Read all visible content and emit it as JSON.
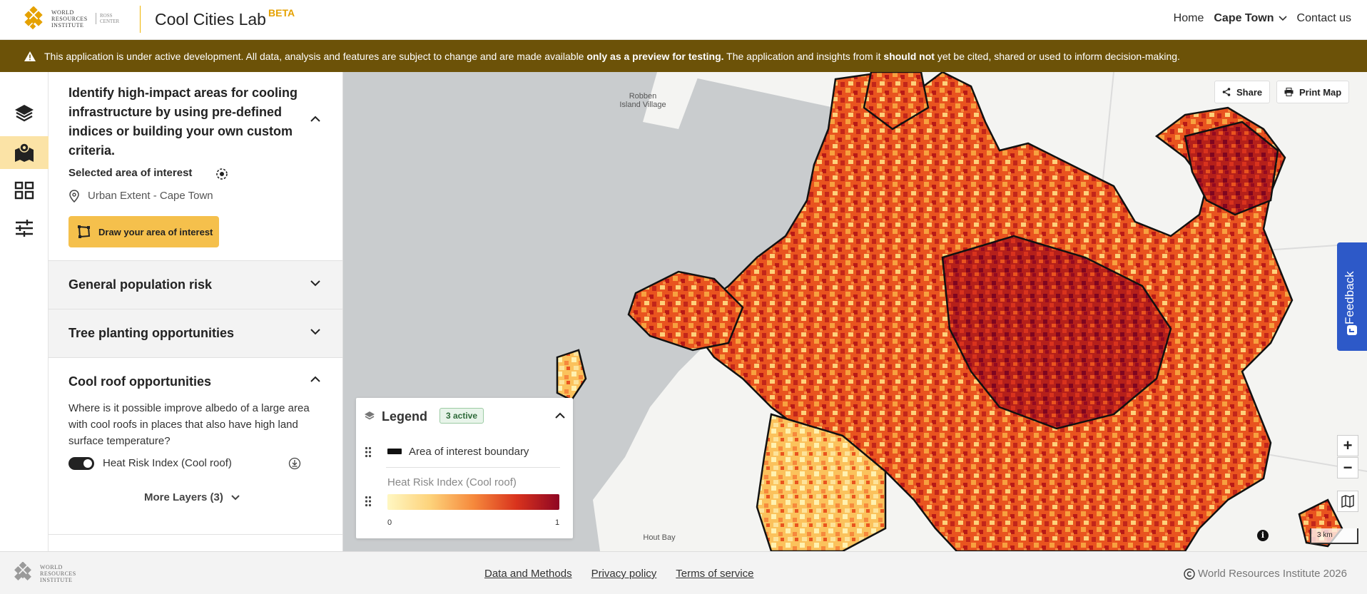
{
  "header": {
    "logo_text": "World Resources Institute",
    "logo_sub": "Ross Center",
    "app_title": "Cool Cities Lab",
    "beta": "BETA",
    "nav": {
      "home": "Home",
      "city": "Cape Town",
      "contact": "Contact us"
    }
  },
  "banner": {
    "part1": "This application is under active development. All data, analysis and features are subject to change and are made available ",
    "bold1": "only as a preview for testing.",
    "part2": " The application and insights from it ",
    "bold2": "should not",
    "part3": " yet be cited, shared or used to inform decision-making."
  },
  "rail": {
    "items": [
      {
        "icon": "layers-icon"
      },
      {
        "icon": "map-icon",
        "active": true
      },
      {
        "icon": "grid-icon"
      },
      {
        "icon": "sliders-icon"
      }
    ]
  },
  "panel": {
    "title": "Identify high-impact areas for cooling infrastructure by using pre-defined indices or building your own custom criteria.",
    "aoi_label": "Selected area of interest",
    "aoi_value": "Urban Extent - Cape Town",
    "draw_button": "Draw your area of interest",
    "sections": {
      "population": "General population risk",
      "trees": "Tree planting opportunities",
      "cool_roof": "Cool roof opportunities"
    },
    "cool_roof_desc": "Where is it possible improve albedo of a large area with cool roofs in places that also have high land surface temperature?",
    "layer_toggle": "Heat Risk Index (Cool roof)",
    "more_layers": "More Layers (3)"
  },
  "map": {
    "labels": {
      "robben": "Robben Island Village",
      "hout_bay": "Hout Bay"
    },
    "share": "Share",
    "print": "Print Map",
    "feedback": "Feedback",
    "zoom_in": "+",
    "zoom_out": "−",
    "scale": "3 km",
    "info": "i"
  },
  "legend": {
    "title": "Legend",
    "badge": "3 active",
    "boundary": "Area of interest boundary",
    "heat_layer": "Heat Risk Index (Cool roof)",
    "min": "0",
    "max": "1",
    "colors": [
      "#fff7c2",
      "#fdd27a",
      "#f6893c",
      "#d9331d",
      "#8f0623"
    ]
  },
  "footer": {
    "logo_text": "World Resources Institute",
    "links": {
      "data": "Data and Methods",
      "privacy": "Privacy policy",
      "terms": "Terms of service"
    },
    "copyright": "World Resources Institute 2026"
  }
}
